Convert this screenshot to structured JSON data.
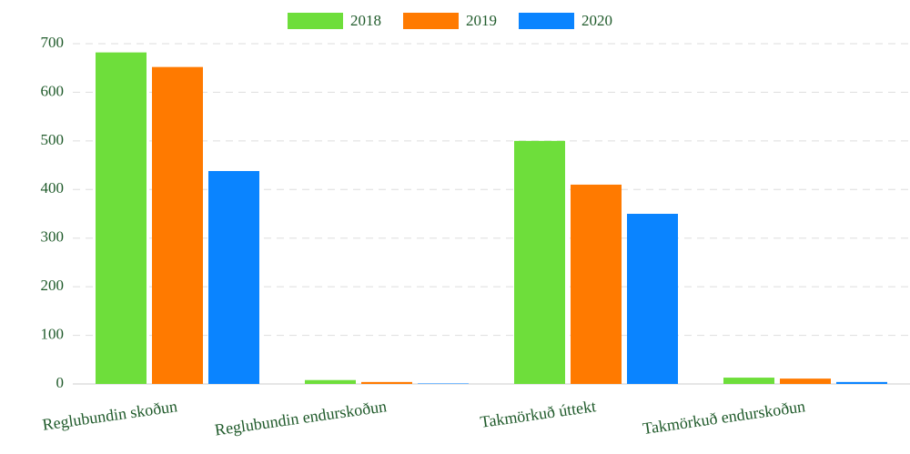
{
  "chart_data": {
    "type": "bar",
    "categories": [
      "Reglubundin skoðun",
      "Reglubundin endurskoðun",
      "Takmörkuð úttekt",
      "Takmörkuð endurskoðun"
    ],
    "series": [
      {
        "name": "2018",
        "color": "#6ede3b",
        "values": [
          682,
          8,
          500,
          13
        ]
      },
      {
        "name": "2019",
        "color": "#ff7a00",
        "values": [
          652,
          4,
          410,
          11
        ]
      },
      {
        "name": "2020",
        "color": "#0a84ff",
        "values": [
          438,
          1,
          350,
          4
        ]
      }
    ],
    "ylim": [
      0,
      700
    ],
    "yticks": [
      0,
      100,
      200,
      300,
      400,
      500,
      600,
      700
    ],
    "grid": true,
    "legend": "top"
  }
}
